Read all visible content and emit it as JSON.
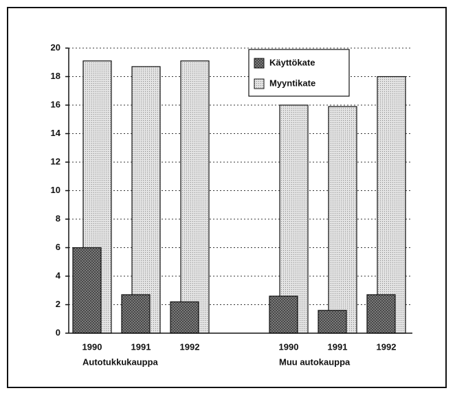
{
  "chart_data": {
    "type": "bar",
    "categories": [
      "1990",
      "1991",
      "1992",
      "1990",
      "1991",
      "1992"
    ],
    "group_labels": [
      "Autotukkukauppa",
      "Muu autokauppa"
    ],
    "series": [
      {
        "name": "Käyttökate",
        "color": "#3a3a3a",
        "values": [
          6.0,
          2.7,
          2.2,
          2.6,
          1.6,
          2.7
        ]
      },
      {
        "name": "Myyntikate",
        "color": "#d8d8d8",
        "values": [
          19.1,
          18.7,
          19.1,
          16.0,
          15.9,
          18.0
        ]
      }
    ],
    "ylim": [
      0,
      20
    ],
    "yticks": [
      0,
      2,
      4,
      6,
      8,
      10,
      12,
      14,
      16,
      18,
      20
    ],
    "grid": true,
    "legend": "top-right"
  }
}
